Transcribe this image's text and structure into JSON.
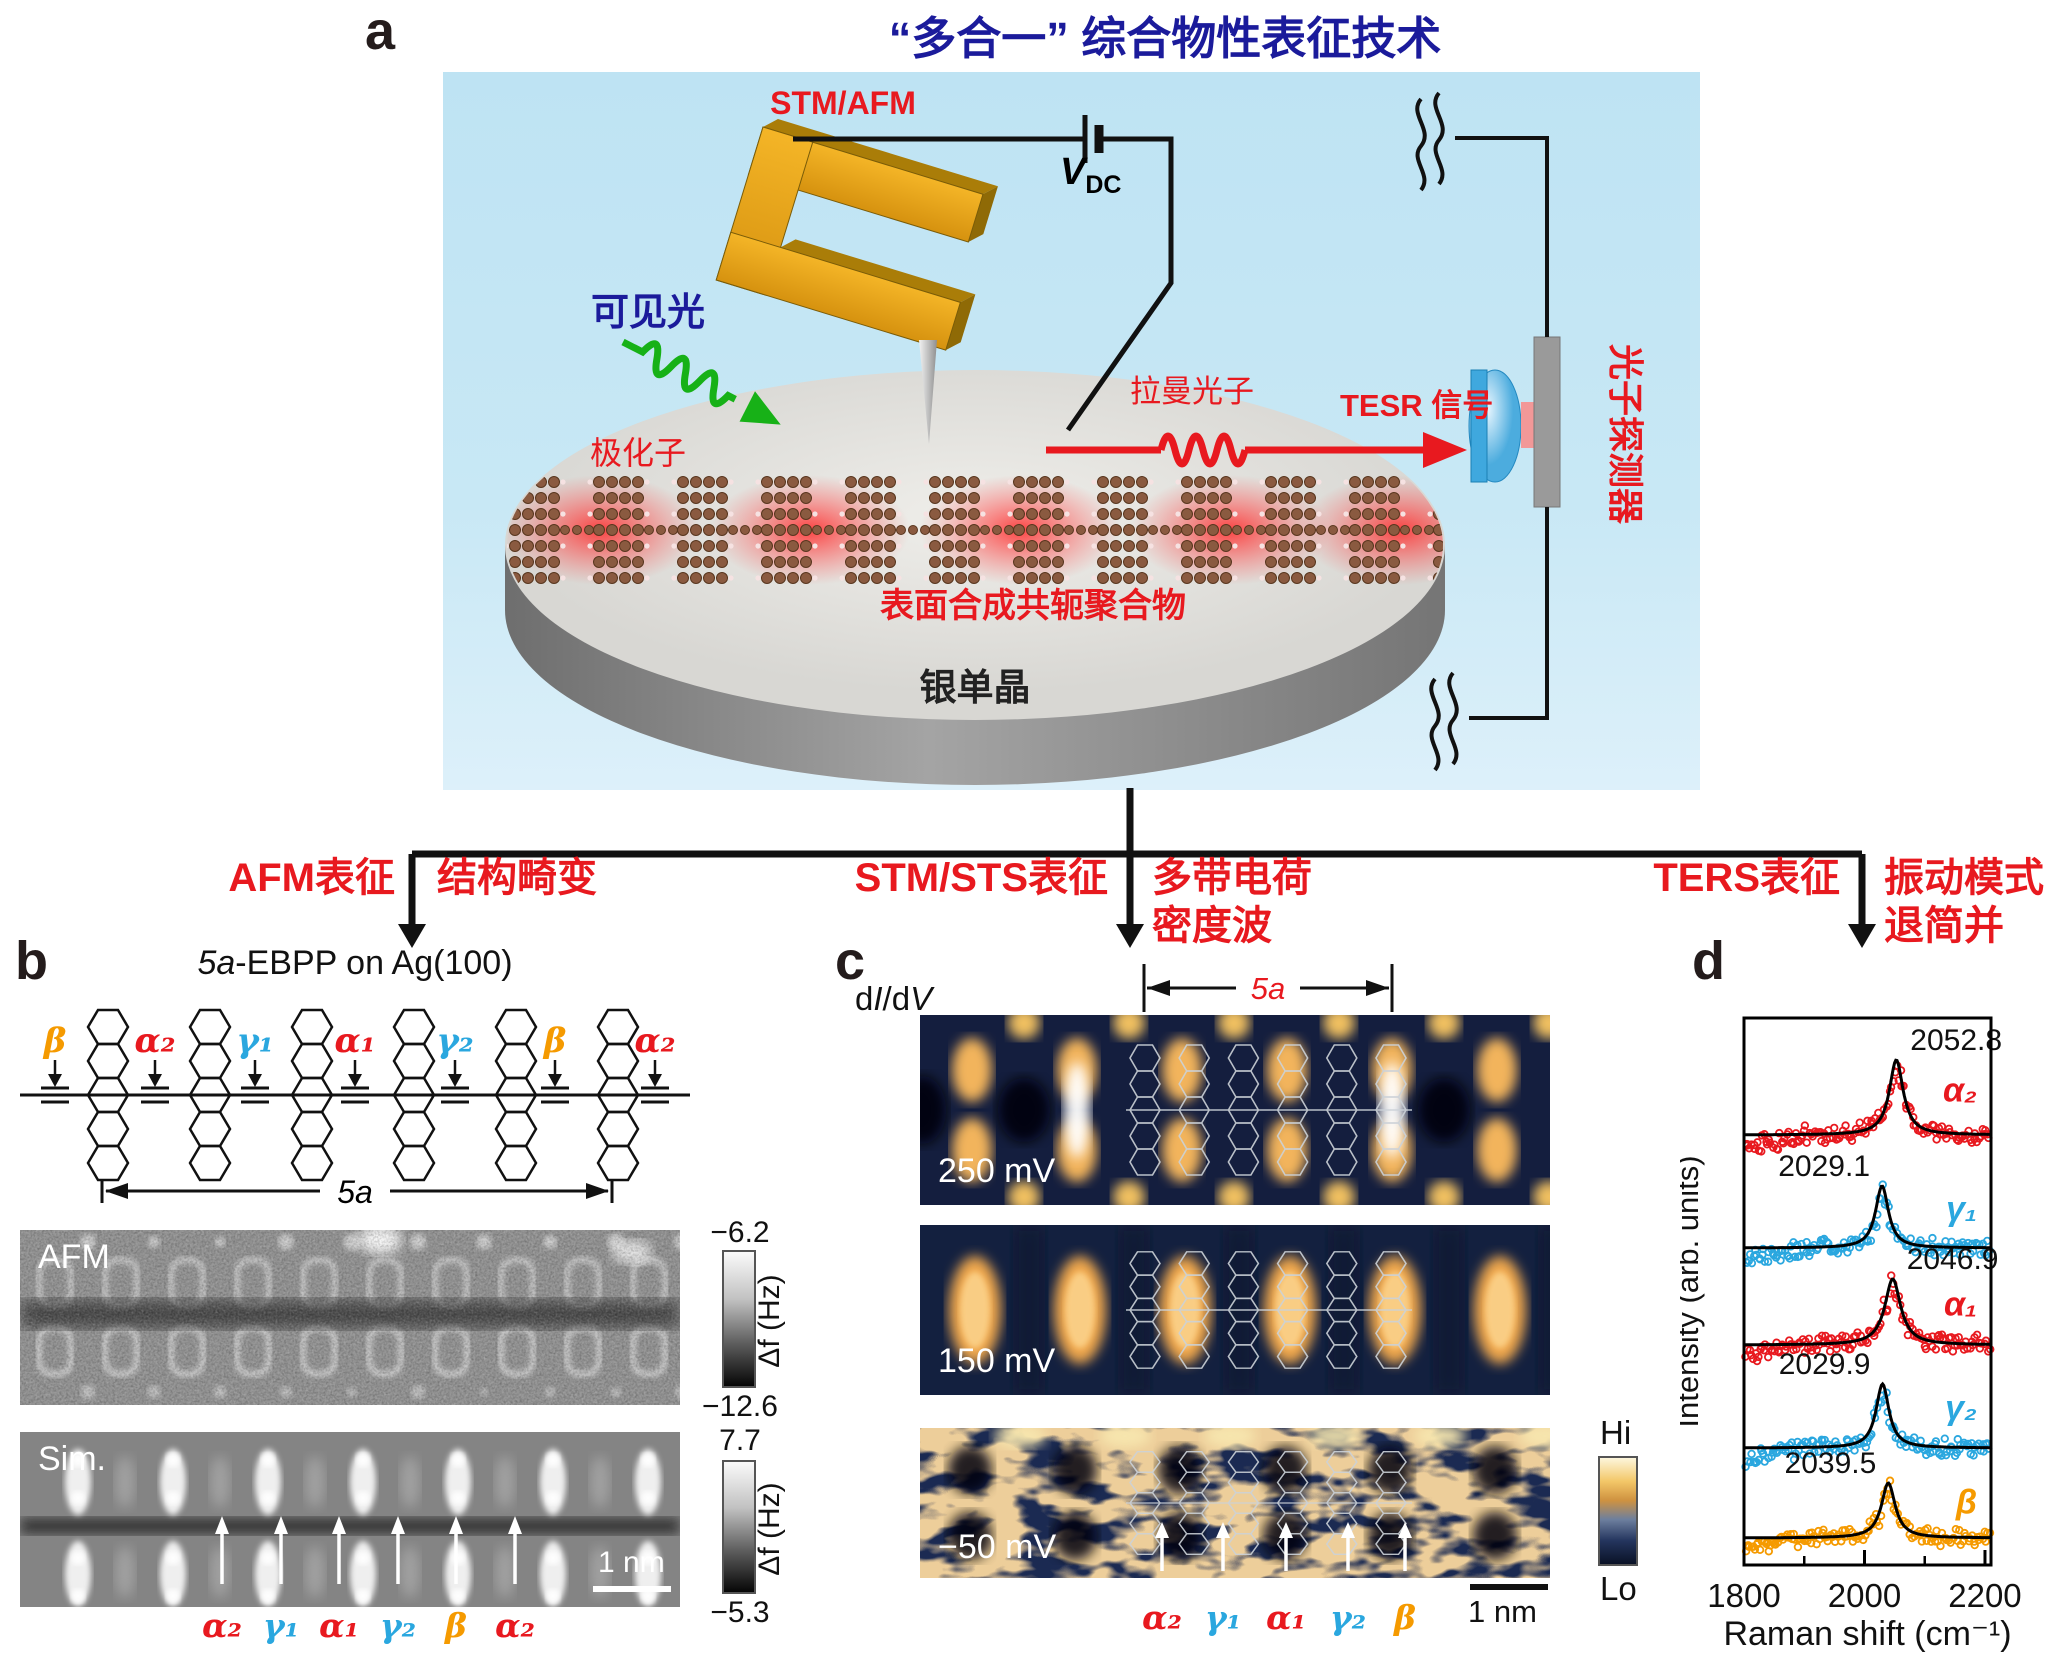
{
  "panel_a": {
    "label": "a",
    "title": "“多合一” 综合物性表征技术",
    "probe_label": "STM/AFM",
    "bias_label": "V",
    "bias_sub": "DC",
    "visible_light": "可见光",
    "polaron": "极化子",
    "raman_photon": "拉曼光子",
    "tesr_signal": "TESR 信号",
    "photon_detector": "光子探测器",
    "polymer_label": "表面合成共轭聚合物",
    "substrate_label": "银单晶",
    "colors": {
      "accent_red": "#e8191f",
      "deep_blue": "#1b1b9b",
      "laser_green": "#17b117",
      "fork_gold": "#e8a41a"
    }
  },
  "flow": {
    "branches": [
      {
        "method": "AFM表征",
        "result_line1": "结构畸变",
        "result_line2": ""
      },
      {
        "method": "STM/STS表征",
        "result_line1": "多带电荷",
        "result_line2": "密度波"
      },
      {
        "method": "TERS表征",
        "result_line1": "振动模式",
        "result_line2": "退简并"
      }
    ]
  },
  "panel_b": {
    "label": "b",
    "title_prefix": "5a",
    "title_suffix": "-EBPP on Ag(100)",
    "bond_labels": [
      {
        "text": "β",
        "color": "#f59a00"
      },
      {
        "text": "α₂",
        "color": "#e8191f"
      },
      {
        "text": "γ₁",
        "color": "#2aa7df"
      },
      {
        "text": "α₁",
        "color": "#e8191f"
      },
      {
        "text": "γ₂",
        "color": "#2aa7df"
      },
      {
        "text": "β",
        "color": "#f59a00"
      },
      {
        "text": "α₂",
        "color": "#e8191f"
      }
    ],
    "span_label": "5a",
    "afm": {
      "tag": "AFM",
      "cbar_top": "−6.2",
      "cbar_bottom": "−12.6",
      "cbar_unit": "Δf (Hz)"
    },
    "sim": {
      "tag": "Sim.",
      "cbar_top": "7.7",
      "cbar_bottom": "−5.3",
      "cbar_unit": "Δf (Hz)",
      "scalebar": "1 nm",
      "site_labels": [
        {
          "text": "α₂",
          "color": "#e8191f"
        },
        {
          "text": "γ₁",
          "color": "#2aa7df"
        },
        {
          "text": "α₁",
          "color": "#e8191f"
        },
        {
          "text": "γ₂",
          "color": "#2aa7df"
        },
        {
          "text": "β",
          "color": "#f59a00"
        },
        {
          "text": "α₂",
          "color": "#e8191f"
        }
      ]
    }
  },
  "panel_c": {
    "label": "c",
    "map_title_parts": [
      "d",
      "I",
      "/d",
      "V"
    ],
    "span_label": "5a",
    "maps": [
      {
        "bias": "250 mV"
      },
      {
        "bias": "150 mV"
      },
      {
        "bias": "−50 mV"
      }
    ],
    "cbar_top": "Hi",
    "cbar_bottom": "Lo",
    "scalebar": "1 nm",
    "site_labels": [
      {
        "text": "α₂",
        "color": "#e8191f"
      },
      {
        "text": "γ₁",
        "color": "#2aa7df"
      },
      {
        "text": "α₁",
        "color": "#e8191f"
      },
      {
        "text": "γ₂",
        "color": "#2aa7df"
      },
      {
        "text": "β",
        "color": "#f59a00"
      }
    ]
  },
  "panel_d": {
    "label": "d"
  },
  "chart_data": {
    "type": "scatter",
    "title": "",
    "xlabel": "Raman shift (cm⁻¹)",
    "ylabel": "Intensity (arb. units)",
    "xlim": [
      1800,
      2210
    ],
    "xticks": [
      1800,
      2000,
      2200
    ],
    "xticks_minor": [
      1900,
      2100
    ],
    "fit": "lorentzian",
    "legend_position": "right-of-each-curve",
    "series": [
      {
        "name": "α₂",
        "color": "#e8191f",
        "peak": 2052.8,
        "peak_label": "2052.8",
        "label_side": "right",
        "amp": 75,
        "hwhm": 14
      },
      {
        "name": "γ₁",
        "color": "#2aa7df",
        "peak": 2029.1,
        "peak_label": "2029.1",
        "label_side": "left",
        "amp": 62,
        "hwhm": 13
      },
      {
        "name": "α₁",
        "color": "#e8191f",
        "peak": 2046.9,
        "peak_label": "2046.9",
        "label_side": "right",
        "amp": 66,
        "hwhm": 16
      },
      {
        "name": "γ₂",
        "color": "#2aa7df",
        "peak": 2029.9,
        "peak_label": "2029.9",
        "label_side": "left",
        "amp": 64,
        "hwhm": 13
      },
      {
        "name": "β",
        "color": "#f59a00",
        "peak": 2039.5,
        "peak_label": "2039.5",
        "label_side": "left",
        "amp": 55,
        "hwhm": 14
      }
    ]
  }
}
